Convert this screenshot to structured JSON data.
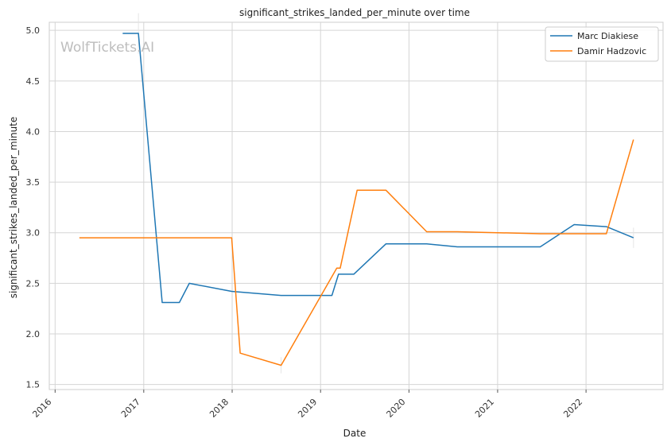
{
  "chart_data": {
    "type": "line",
    "title": "significant_strikes_landed_per_minute over time",
    "xlabel": "Date",
    "ylabel": "significant_strikes_landed_per_minute",
    "watermark": "WolfTickets.AI",
    "x_ticks": [
      "2016",
      "2017",
      "2018",
      "2019",
      "2020",
      "2021",
      "2022"
    ],
    "y_ticks": [
      "1.5",
      "2.0",
      "2.5",
      "3.0",
      "3.5",
      "4.0",
      "4.5",
      "5.0"
    ],
    "xlim": [
      "2015-12-08",
      "2022-11-15"
    ],
    "ylim": [
      1.45,
      5.08
    ],
    "grid": true,
    "legend_position": "top-right",
    "series": [
      {
        "name": "Marc Diakiese",
        "color": "#1f77b4",
        "points": [
          [
            "2016-10-06",
            4.97
          ],
          [
            "2016-12-10",
            4.97
          ],
          [
            "2017-03-18",
            2.31
          ],
          [
            "2017-05-28",
            2.31
          ],
          [
            "2017-07-08",
            2.5
          ],
          [
            "2017-12-30",
            2.42
          ],
          [
            "2018-07-22",
            2.38
          ],
          [
            "2019-02-17",
            2.38
          ],
          [
            "2019-03-16",
            2.59
          ],
          [
            "2019-05-18",
            2.59
          ],
          [
            "2019-09-28",
            2.89
          ],
          [
            "2020-03-14",
            2.89
          ],
          [
            "2020-07-19",
            2.86
          ],
          [
            "2021-06-26",
            2.86
          ],
          [
            "2021-11-13",
            3.08
          ],
          [
            "2022-03-26",
            3.06
          ],
          [
            "2022-07-16",
            2.95
          ]
        ]
      },
      {
        "name": "Damir Hadzovic",
        "color": "#ff7f0e",
        "points": [
          [
            "2016-04-10",
            2.95
          ],
          [
            "2017-12-30",
            2.95
          ],
          [
            "2018-02-03",
            1.81
          ],
          [
            "2018-07-22",
            1.69
          ],
          [
            "2019-03-09",
            2.65
          ],
          [
            "2019-03-23",
            2.65
          ],
          [
            "2019-06-01",
            3.42
          ],
          [
            "2019-09-28",
            3.42
          ],
          [
            "2020-03-14",
            3.01
          ],
          [
            "2020-07-19",
            3.01
          ],
          [
            "2021-06-26",
            2.99
          ],
          [
            "2022-03-26",
            2.99
          ],
          [
            "2022-07-16",
            3.92
          ]
        ]
      }
    ]
  }
}
